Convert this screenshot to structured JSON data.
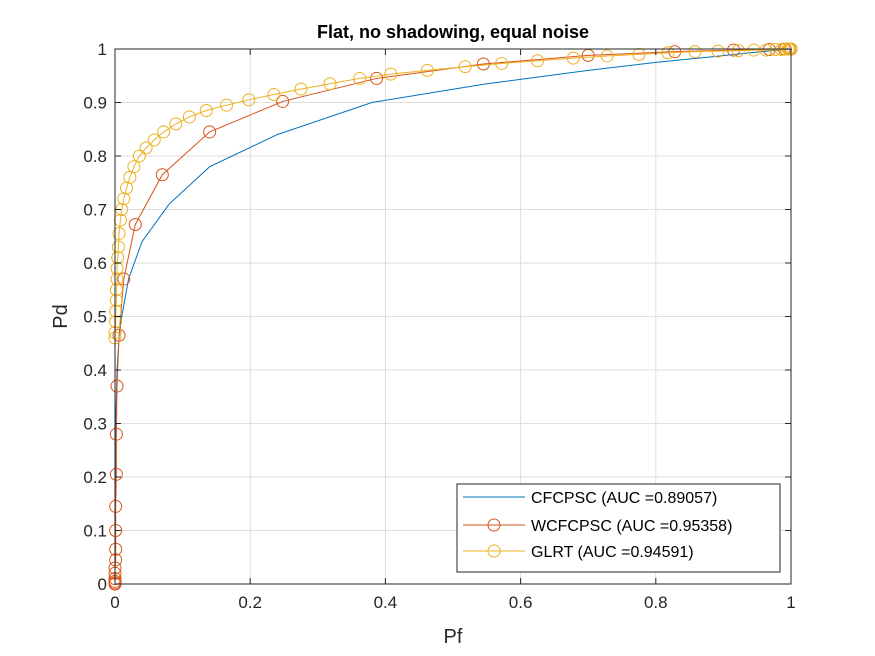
{
  "chart_data": {
    "type": "line",
    "title": "Flat, no shadowing, equal noise",
    "xlabel": "Pf",
    "ylabel": "Pd",
    "xlim": [
      0,
      1
    ],
    "ylim": [
      0,
      1
    ],
    "xticks": [
      0,
      0.2,
      0.4,
      0.6,
      0.8,
      1
    ],
    "yticks": [
      0,
      0.1,
      0.2,
      0.3,
      0.4,
      0.5,
      0.6,
      0.7,
      0.8,
      0.9,
      1
    ],
    "xtick_labels": [
      "0",
      "0.2",
      "0.4",
      "0.6",
      "0.8",
      "1"
    ],
    "ytick_labels": [
      "0",
      "0.1",
      "0.2",
      "0.3",
      "0.4",
      "0.5",
      "0.6",
      "0.7",
      "0.8",
      "0.9",
      "1"
    ],
    "grid": true,
    "legend_position": "bottom-right",
    "series": [
      {
        "name": "CFCPSC (AUC =0.89057)",
        "color": "#0072BD",
        "marker": "none",
        "x": [
          0,
          0.001,
          0.003,
          0.006,
          0.01,
          0.02,
          0.04,
          0.08,
          0.14,
          0.24,
          0.38,
          0.55,
          0.7,
          0.8,
          0.88,
          0.94,
          0.98,
          1.0
        ],
        "y": [
          0,
          0.3,
          0.4,
          0.46,
          0.5,
          0.57,
          0.64,
          0.71,
          0.78,
          0.84,
          0.9,
          0.935,
          0.96,
          0.975,
          0.985,
          0.993,
          0.998,
          1.0
        ]
      },
      {
        "name": "WCFCPSC (AUC =0.95358)",
        "color": "#D95319",
        "marker": "circle",
        "x": [
          0,
          0,
          0,
          0,
          0,
          0,
          0.001,
          0.001,
          0.001,
          0.001,
          0.002,
          0.002,
          0.003,
          0.006,
          0.013,
          0.03,
          0.07,
          0.14,
          0.248,
          0.387,
          0.545,
          0.7,
          0.828,
          0.915,
          0.968,
          0.99,
          0.998,
          1.0
        ],
        "y": [
          0,
          0.002,
          0.005,
          0.01,
          0.02,
          0.03,
          0.045,
          0.065,
          0.1,
          0.145,
          0.205,
          0.28,
          0.37,
          0.465,
          0.57,
          0.672,
          0.765,
          0.845,
          0.902,
          0.945,
          0.972,
          0.988,
          0.995,
          0.998,
          0.999,
          1.0,
          1.0,
          1.0
        ]
      },
      {
        "name": "GLRT (AUC =0.94591)",
        "color": "#EDB120",
        "marker": "circle",
        "x": [
          0,
          0,
          0.001,
          0.001,
          0.002,
          0.002,
          0.003,
          0.003,
          0.004,
          0.005,
          0.006,
          0.008,
          0.01,
          0.013,
          0.017,
          0.022,
          0.028,
          0.036,
          0.046,
          0.058,
          0.072,
          0.09,
          0.11,
          0.135,
          0.165,
          0.198,
          0.235,
          0.275,
          0.318,
          0.362,
          0.408,
          0.462,
          0.518,
          0.572,
          0.625,
          0.678,
          0.728,
          0.775,
          0.818,
          0.858,
          0.892,
          0.922,
          0.945,
          0.963,
          0.977,
          0.986,
          0.992,
          0.996,
          0.998,
          1.0
        ],
        "y": [
          0.46,
          0.47,
          0.49,
          0.51,
          0.53,
          0.55,
          0.57,
          0.59,
          0.61,
          0.63,
          0.655,
          0.68,
          0.7,
          0.72,
          0.74,
          0.76,
          0.78,
          0.8,
          0.815,
          0.83,
          0.845,
          0.86,
          0.873,
          0.885,
          0.895,
          0.905,
          0.915,
          0.925,
          0.935,
          0.945,
          0.953,
          0.96,
          0.967,
          0.973,
          0.978,
          0.983,
          0.987,
          0.99,
          0.993,
          0.995,
          0.996,
          0.997,
          0.998,
          0.998,
          0.999,
          0.999,
          1.0,
          1.0,
          1.0,
          1.0
        ]
      }
    ]
  }
}
